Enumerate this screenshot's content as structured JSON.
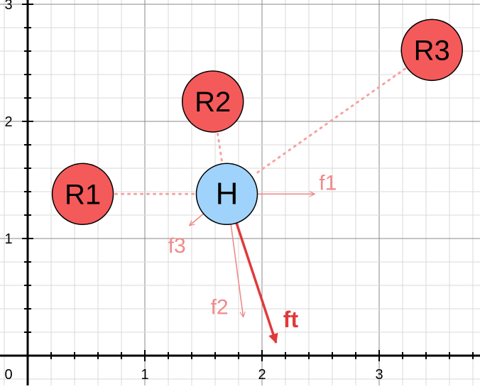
{
  "axes": {
    "x_ticks": [
      {
        "value": 1,
        "label": "1"
      },
      {
        "value": 2,
        "label": "2"
      },
      {
        "value": 3,
        "label": "3"
      }
    ],
    "y_ticks": [
      {
        "value": 1,
        "label": "1"
      },
      {
        "value": 2,
        "label": "2"
      },
      {
        "value": 3,
        "label": "3"
      }
    ],
    "origin_label": "0"
  },
  "nodes": [
    {
      "id": "R1",
      "label": "R1",
      "x": 0.47,
      "y": 1.38,
      "fill": "#f45a5a"
    },
    {
      "id": "R2",
      "label": "R2",
      "x": 1.58,
      "y": 2.17,
      "fill": "#f45a5a"
    },
    {
      "id": "R3",
      "label": "R3",
      "x": 3.45,
      "y": 2.61,
      "fill": "#f45a5a"
    },
    {
      "id": "H",
      "label": "H",
      "x": 1.7,
      "y": 1.38,
      "fill": "#9fd3fb"
    }
  ],
  "links": [
    {
      "from": "R1",
      "to": "H"
    },
    {
      "from": "R2",
      "to": "H"
    },
    {
      "from": "R3",
      "to": "H"
    }
  ],
  "forces": [
    {
      "label": "f1",
      "dx": 0.75,
      "dy": 0.0,
      "color": "#f08a8a",
      "bold": false
    },
    {
      "label": "f2",
      "dx": 0.14,
      "dy": -1.05,
      "color": "#f08a8a",
      "bold": false
    },
    {
      "label": "f3",
      "dx": -0.32,
      "dy": -0.27,
      "color": "#f08a8a",
      "bold": false
    },
    {
      "label": "ft",
      "dx": 0.42,
      "dy": -1.27,
      "color": "#e03a3a",
      "bold": true
    }
  ],
  "colors": {
    "link": "#f4a3a3",
    "node_stroke": "#000000",
    "axis": "#000000",
    "grid_major": "#8a8a8a",
    "grid_minor": "#d9d9d9"
  }
}
